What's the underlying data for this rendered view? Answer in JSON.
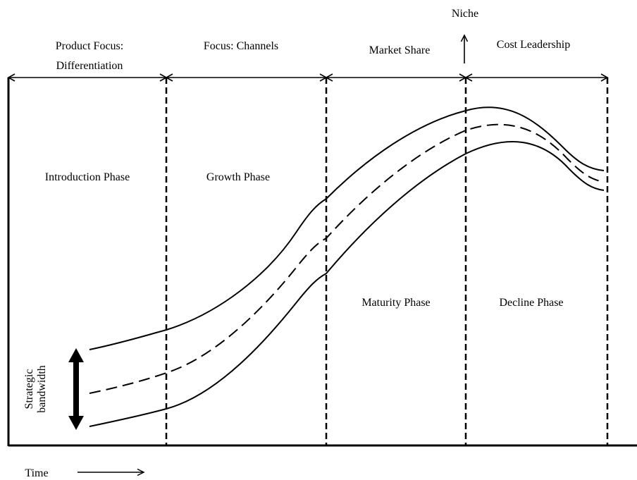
{
  "colors": {
    "ink": "#000000",
    "background": "#ffffff"
  },
  "strategies": {
    "product_focus_line1": "Product Focus:",
    "product_focus_line2": "Differentiation",
    "focus_channels": "Focus: Channels",
    "market_share": "Market Share",
    "cost_leadership": "Cost Leadership",
    "niche": "Niche"
  },
  "phases": {
    "introduction": "Introduction Phase",
    "growth": "Growth Phase",
    "maturity": "Maturity Phase",
    "decline": "Decline Phase"
  },
  "bandwidth": {
    "line1": "Strategic",
    "line2": "bandwidth"
  },
  "axis": {
    "time_label": "Time"
  }
}
